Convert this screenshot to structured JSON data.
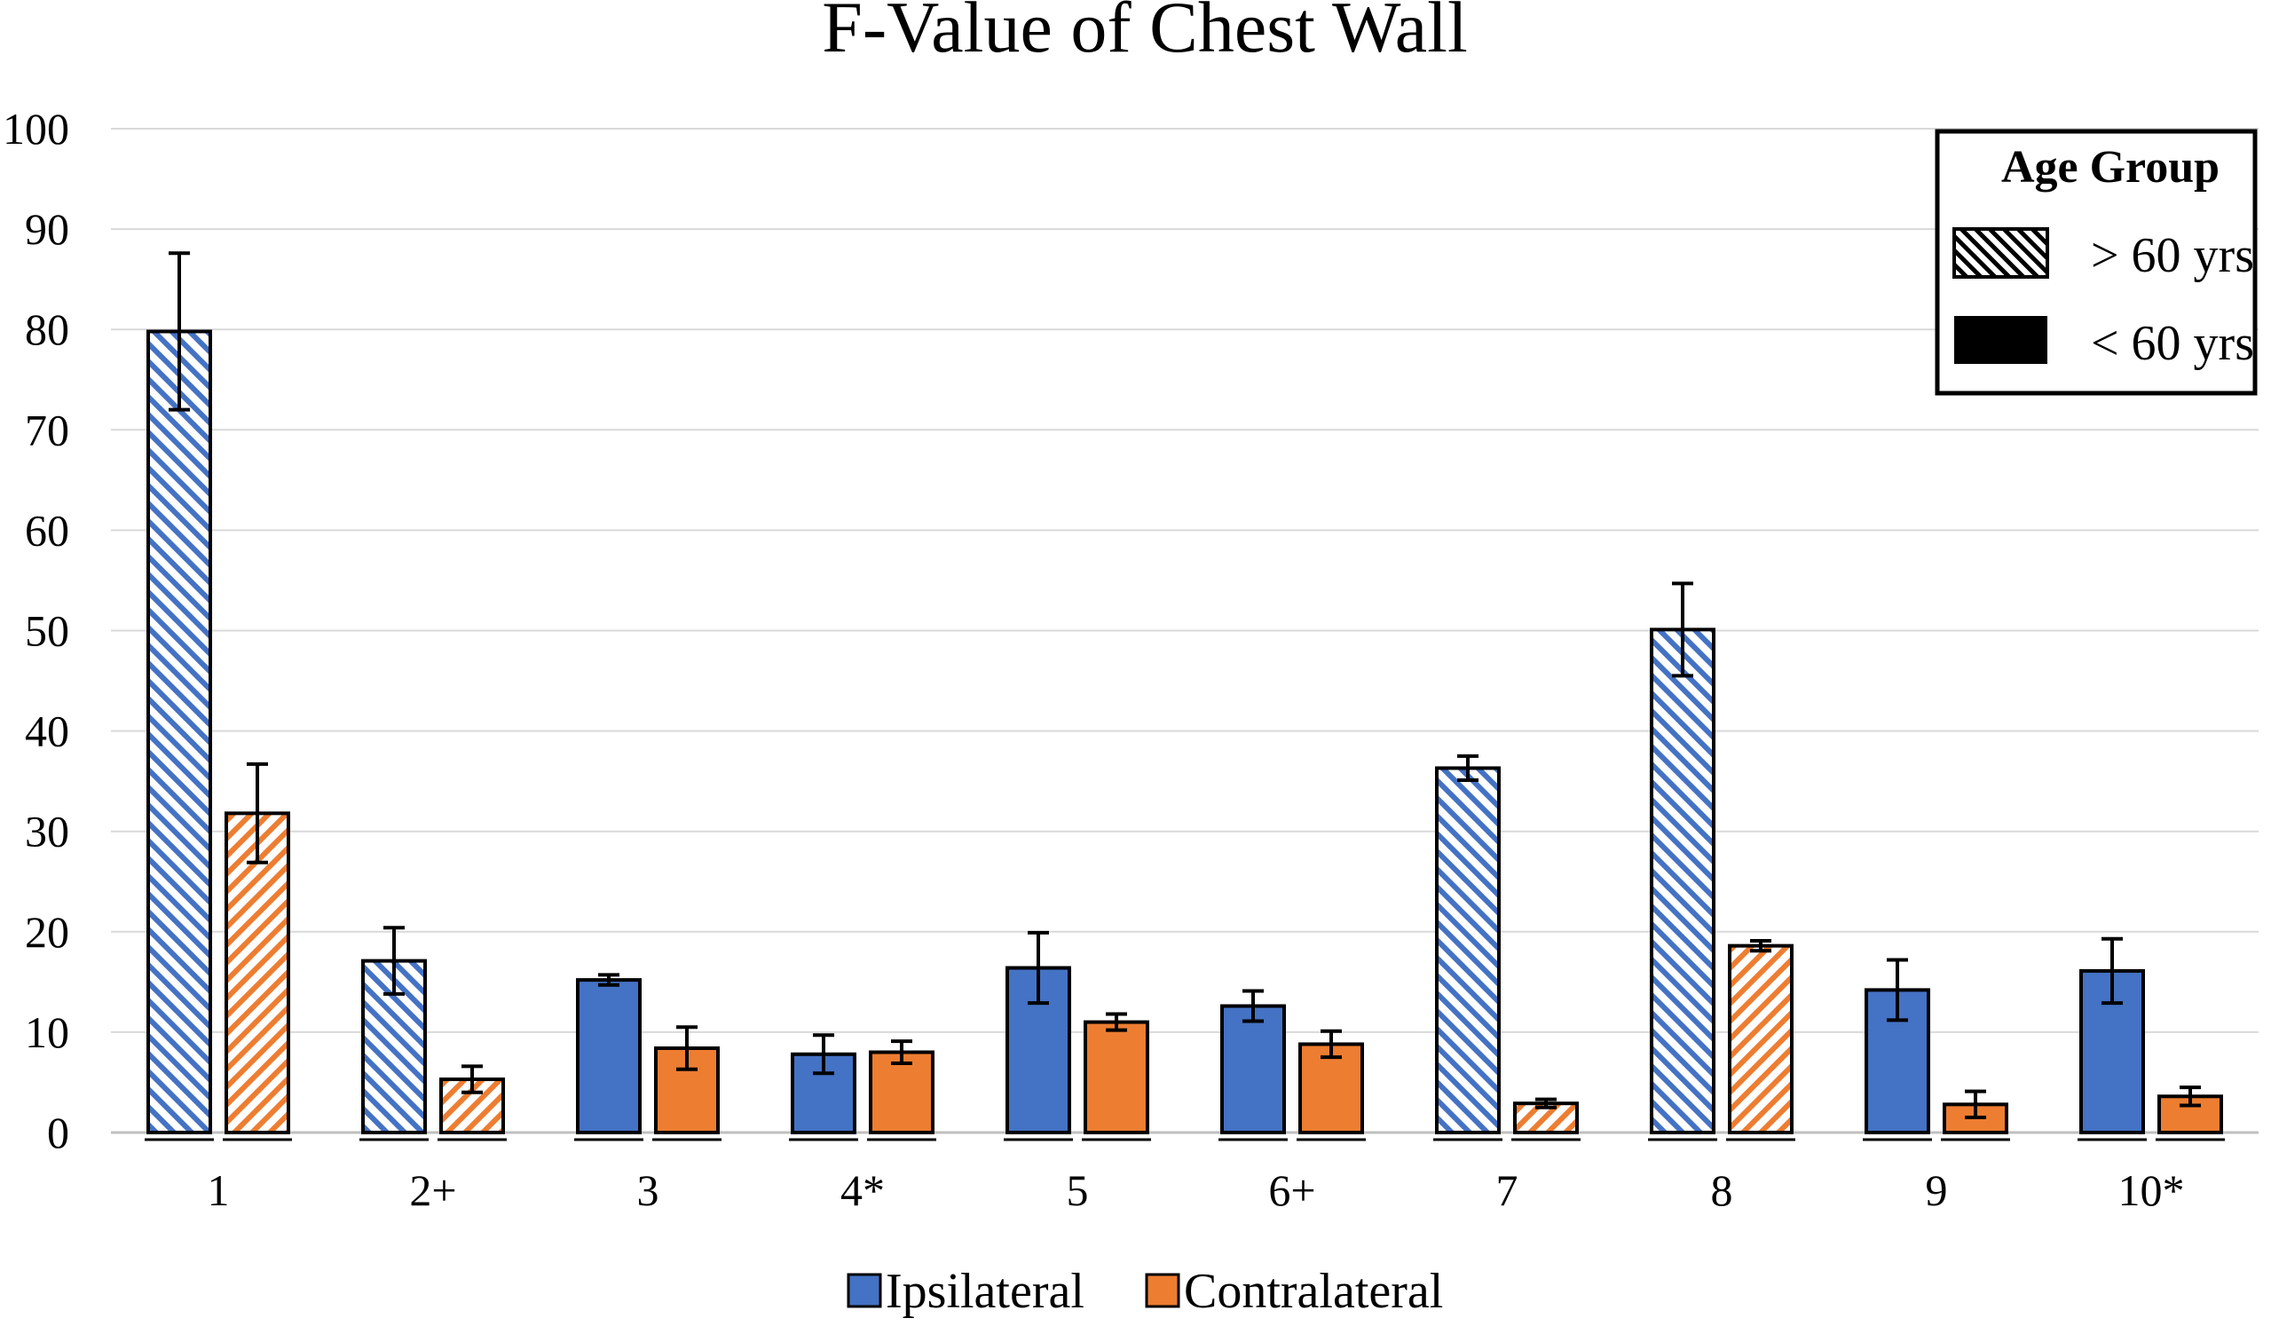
{
  "chart_data": {
    "type": "bar",
    "title": "F-Value of Chest Wall",
    "xlabel": "",
    "ylabel": "",
    "ylim": [
      0,
      100
    ],
    "yticks": [
      0,
      10,
      20,
      30,
      40,
      50,
      60,
      70,
      80,
      90,
      100
    ],
    "grid": true,
    "categories": [
      "1",
      "2+",
      "3",
      "4*",
      "5",
      "6+",
      "7",
      "8",
      "9",
      "10*"
    ],
    "age_group_over_60": [
      true,
      true,
      false,
      false,
      false,
      false,
      true,
      true,
      false,
      false
    ],
    "series": [
      {
        "name": "Ipsilateral",
        "color": "#4472C4",
        "values": [
          79.8,
          17.1,
          15.2,
          7.8,
          16.4,
          12.6,
          36.3,
          50.1,
          14.2,
          16.1
        ],
        "errors": [
          7.8,
          3.3,
          0.5,
          1.9,
          3.5,
          1.5,
          1.2,
          4.6,
          3.0,
          3.2
        ]
      },
      {
        "name": "Contralateral",
        "color": "#ED7D31",
        "values": [
          31.8,
          5.3,
          8.4,
          8.0,
          11.0,
          8.8,
          2.9,
          18.6,
          2.8,
          3.6
        ],
        "errors": [
          4.9,
          1.3,
          2.1,
          1.1,
          0.8,
          1.3,
          0.4,
          0.5,
          1.3,
          0.9
        ]
      }
    ],
    "legend": {
      "position": "top-right",
      "title": "Age Group",
      "items": [
        {
          "label": "> 60 yrs",
          "pattern": "hatched"
        },
        {
          "label": "< 60 yrs",
          "pattern": "solid"
        }
      ]
    },
    "series_legend": {
      "position": "bottom-center",
      "items": [
        "Ipsilateral",
        "Contralateral"
      ]
    }
  }
}
